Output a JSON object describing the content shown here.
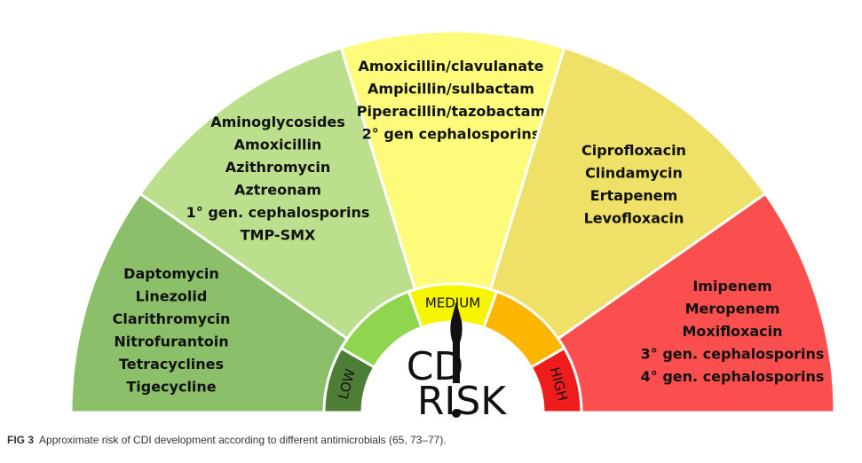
{
  "segments": [
    {
      "name": "low-segment",
      "color": "#8cbf6a",
      "drugs": [
        "Daptomycin",
        "Linezolid",
        "Clarithromycin",
        "Nitrofurantoin",
        "Tetracyclines",
        "Tigecycline"
      ]
    },
    {
      "name": "low-medium-segment",
      "color": "#bcdf8e",
      "drugs": [
        "Aminoglycosides",
        "Amoxicillin",
        "Azithromycin",
        "Aztreonam",
        "1° gen. cephalosporins",
        "TMP-SMX"
      ]
    },
    {
      "name": "medium-segment",
      "color": "#fefa7a",
      "drugs": [
        "Amoxicillin/clavulanate",
        "Ampicillin/sulbactam",
        "Piperacillin/tazobactam",
        "2° gen cephalosporins"
      ]
    },
    {
      "name": "medium-high-segment",
      "color": "#efe068",
      "drugs": [
        "Ciprofloxacin",
        "Clindamycin",
        "Ertapenem",
        "Levofloxacin"
      ]
    },
    {
      "name": "high-segment",
      "color": "#fb4f4f",
      "drugs": [
        "Imipenem",
        "Meropenem",
        "Moxifloxacin",
        "3° gen. cephalosporins",
        "4° gen. cephalosporins"
      ]
    }
  ],
  "inner_ring": [
    {
      "name": "ring-low",
      "color": "#4e7d35",
      "label": "LOW"
    },
    {
      "name": "ring-low-medium",
      "color": "#8fd550",
      "label": ""
    },
    {
      "name": "ring-medium",
      "color": "#f5f500",
      "label": "MEDIUM"
    },
    {
      "name": "ring-medium-high",
      "color": "#fcb600",
      "label": ""
    },
    {
      "name": "ring-high",
      "color": "#ee1c1c",
      "label": "HIGH"
    }
  ],
  "logo": {
    "line1": "CD",
    "line2": "RISK"
  },
  "caption": {
    "fig": "FIG 3",
    "text": "Approximate risk of CDI development according to different antimicrobials (65, 73–77)."
  }
}
